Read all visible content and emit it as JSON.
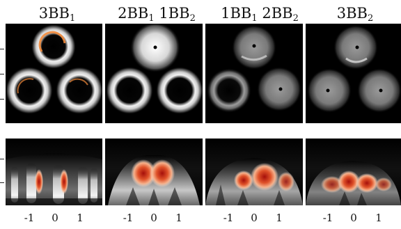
{
  "figure": {
    "column_titles": [
      {
        "main": "3BB",
        "sub": "1",
        "sep": ""
      },
      {
        "main": "2BB",
        "sub": "1",
        "sep": "  "
      },
      {
        "main": "1BB",
        "sub": "1",
        "sep": "  "
      },
      {
        "main": "3BB",
        "sub": "2",
        "sep": ""
      }
    ],
    "extra_titles": [
      {
        "main": "1BB",
        "sub": "2"
      },
      {
        "main": "2BB",
        "sub": "2"
      }
    ],
    "x_tick_labels": [
      "-1",
      "0",
      "1"
    ],
    "colors": {
      "background": "#000000",
      "ring": "#e8e8e8",
      "hot": "#b71c0c",
      "warm": "#f08a4b",
      "pale": "#f7d7c4"
    }
  }
}
